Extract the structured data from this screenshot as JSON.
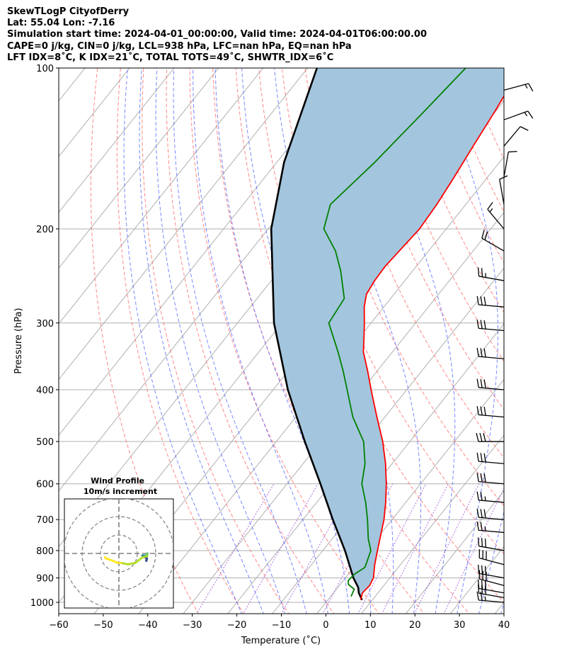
{
  "header": {
    "line1": "SkewTLogP CityofDerry",
    "line2": "Lat: 55.04   Lon: -7.16",
    "line3": "Simulation start time: 2024-04-01_00:00:00, Valid time: 2024-04-01T06:00:00.00",
    "line4": "CAPE=0 j/kg, CIN=0 j/kg, LCL=938 hPa, LFC=nan hPa, EQ=nan hPa",
    "line5": "LFT IDX=8˚C, K IDX=21˚C, TOTAL TOTS=49˚C, SHWTR_IDX=6˚C"
  },
  "chart_data": {
    "type": "line",
    "xlabel": "Temperature (˚C)",
    "ylabel": "Pressure (hPa)",
    "xlim": [
      -60,
      40
    ],
    "ylim": [
      1050,
      100
    ],
    "y_scale": "log",
    "x_ticks": [
      -60,
      -50,
      -40,
      -30,
      -20,
      -10,
      0,
      10,
      20,
      30,
      40
    ],
    "y_ticks": [
      1000,
      900,
      800,
      700,
      600,
      500,
      400,
      300,
      200,
      100
    ],
    "grid": true,
    "colors": {
      "temperature": "#ff0000",
      "dewpoint": "#008000",
      "parcel": "#000000",
      "cape_fill": "#a3c6de",
      "dry_adiabats": "#ff6a6a",
      "moist_adiabats": "#5a6aff",
      "isotherms": "#b0b0b0",
      "mixing_ratio": "#9b4fd6"
    },
    "series": [
      {
        "key": "temperature",
        "pressure": [
          990,
          960,
          930,
          900,
          850,
          800,
          750,
          700,
          650,
          600,
          550,
          500,
          450,
          400,
          370,
          340,
          320,
          300,
          280,
          265,
          250,
          235,
          200,
          180,
          160,
          140,
          120,
          100
        ],
        "temperature": [
          7.4,
          6.5,
          6.8,
          6.3,
          4.2,
          2.3,
          0.3,
          -1.8,
          -4.5,
          -7.7,
          -11.5,
          -16.1,
          -21.8,
          -28.0,
          -32.0,
          -36.5,
          -38.9,
          -41.5,
          -44.4,
          -46.2,
          -46.8,
          -47.0,
          -46.0,
          -46.5,
          -47.5,
          -48.8,
          -50.2,
          -52.2
        ]
      },
      {
        "key": "dewpoint",
        "pressure": [
          975,
          945,
          925,
          910,
          885,
          860,
          800,
          760,
          700,
          650,
          600,
          550,
          500,
          450,
          400,
          370,
          340,
          300,
          270,
          240,
          220,
          200,
          180,
          150,
          120,
          100
        ],
        "temperature": [
          4.6,
          4.0,
          1.8,
          1.1,
          1.4,
          2.5,
          0.8,
          -1.9,
          -5.5,
          -9.0,
          -13.2,
          -16.1,
          -20.4,
          -27.2,
          -33.4,
          -37.5,
          -42.2,
          -49.5,
          -50.4,
          -56.1,
          -60.9,
          -67.5,
          -70.4,
          -68.0,
          -66.0,
          -64.5
        ]
      },
      {
        "key": "parcel",
        "pressure": [
          990,
          960,
          938,
          900,
          850,
          800,
          700,
          600,
          500,
          400,
          300,
          200,
          150,
          100
        ],
        "temperature": [
          7.7,
          5.7,
          4.6,
          1.8,
          -1.5,
          -5.0,
          -13.3,
          -22.5,
          -33.6,
          -46.7,
          -61.8,
          -79.3,
          -88.4,
          -97.9
        ]
      }
    ],
    "shading": "CAPE/CIN area between temperature and parcel profiles",
    "wind_barbs": {
      "pressure": [
        1000,
        980,
        960,
        930,
        900,
        850,
        800,
        740,
        700,
        650,
        600,
        550,
        500,
        450,
        400,
        350,
        310,
        280,
        250,
        220,
        200,
        180,
        160,
        140,
        125,
        110
      ],
      "direction": [
        275,
        280,
        280,
        285,
        280,
        285,
        280,
        275,
        275,
        275,
        275,
        275,
        270,
        275,
        275,
        275,
        275,
        275,
        280,
        300,
        320,
        350,
        10,
        40,
        70,
        75
      ],
      "speed_kt": [
        25,
        30,
        30,
        30,
        30,
        30,
        30,
        25,
        30,
        25,
        30,
        30,
        30,
        30,
        30,
        30,
        30,
        30,
        25,
        20,
        15,
        10,
        10,
        10,
        15,
        15
      ]
    },
    "inset": {
      "title": "Wind Profile",
      "subtitle": "10m/s increment",
      "rings": 3
    }
  }
}
